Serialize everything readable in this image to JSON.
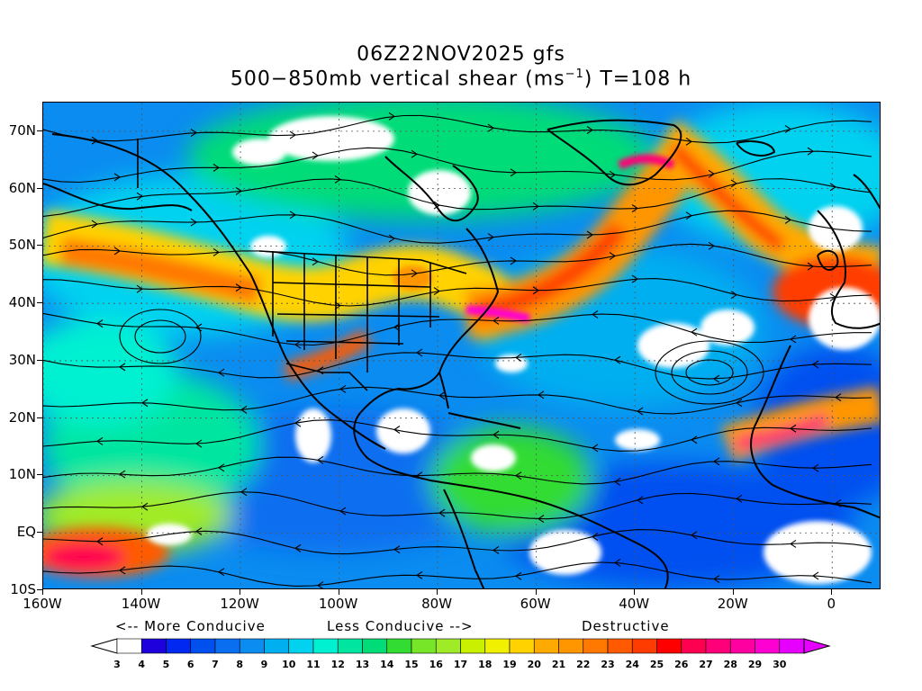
{
  "title": {
    "line1": "06Z22NOV2025 gfs",
    "line2_prefix": "500−850mb vertical shear (ms",
    "line2_sup": "−1",
    "line2_suffix": ") T=108 h"
  },
  "map": {
    "projection": "cylindrical-equidistant",
    "lon_range": [
      -160,
      10
    ],
    "lat_range": [
      -10,
      75
    ],
    "lat_labels": [
      {
        "lat": 70,
        "text": "70N"
      },
      {
        "lat": 60,
        "text": "60N"
      },
      {
        "lat": 50,
        "text": "50N"
      },
      {
        "lat": 40,
        "text": "40N"
      },
      {
        "lat": 30,
        "text": "30N"
      },
      {
        "lat": 20,
        "text": "20N"
      },
      {
        "lat": 10,
        "text": "10N"
      },
      {
        "lat": 0,
        "text": "EQ"
      },
      {
        "lat": -10,
        "text": "10S"
      }
    ],
    "lon_labels": [
      {
        "lon": -160,
        "text": "160W"
      },
      {
        "lon": -140,
        "text": "140W"
      },
      {
        "lon": -120,
        "text": "120W"
      },
      {
        "lon": -100,
        "text": "100W"
      },
      {
        "lon": -80,
        "text": "80W"
      },
      {
        "lon": -60,
        "text": "60W"
      },
      {
        "lon": -40,
        "text": "40W"
      },
      {
        "lon": -20,
        "text": "20W"
      },
      {
        "lon": 0,
        "text": "0"
      }
    ],
    "shading": "filled contours of vertical wind shear with streamlines overlaid",
    "gridlines": "dotted"
  },
  "captions": {
    "more_conducive": "<-- More Conducive",
    "less_conducive": "Less Conducive -->",
    "destructive": "Destructive"
  },
  "colorbar": {
    "labels": [
      "3",
      "4",
      "5",
      "6",
      "7",
      "8",
      "9",
      "10",
      "11",
      "12",
      "13",
      "14",
      "15",
      "16",
      "17",
      "18",
      "19",
      "20",
      "21",
      "22",
      "23",
      "24",
      "25",
      "26",
      "27",
      "28",
      "29",
      "30"
    ],
    "colors": [
      "#ffffff",
      "#1e00dc",
      "#0028f0",
      "#0050f0",
      "#0a6ef0",
      "#0a8cf0",
      "#00aff0",
      "#00d2f0",
      "#00f0d2",
      "#00e6a0",
      "#00dc78",
      "#32dc32",
      "#78e628",
      "#a0eb28",
      "#c8f000",
      "#f0f000",
      "#ffd200",
      "#ffaa00",
      "#ff9600",
      "#ff7800",
      "#ff5a00",
      "#ff3c00",
      "#ff0000",
      "#ff0050",
      "#ff0078",
      "#ff00a0",
      "#ff00d2",
      "#e600ff"
    ]
  }
}
